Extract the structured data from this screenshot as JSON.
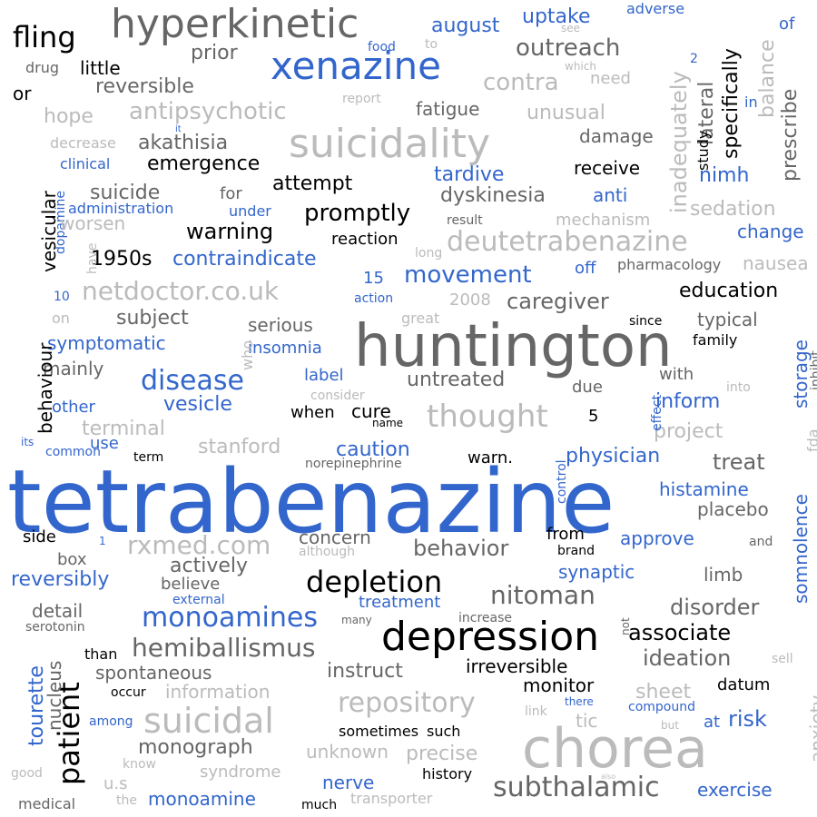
{
  "palette": {
    "black": "#000000",
    "dark_gray": "#666666",
    "light_gray": "#bbbbbb",
    "blue": "#3366cc",
    "mid_gray": "#999999"
  },
  "words": [
    "tetrabenazine",
    "huntington",
    "chorea",
    "xenazine",
    "suicidality",
    "depression",
    "hyperkinetic",
    "deutetrabenazine",
    "patient",
    "subthalamic",
    "repository",
    "suicidal",
    "hemiballismus",
    "monoamines",
    "depletion",
    "thought",
    "nitoman",
    "disease",
    "fling",
    "rxmed.com",
    "netdoctor.co.uk",
    "behavior",
    "associate",
    "ideation",
    "disorder",
    "antipsychotic",
    "akathisia",
    "emergence",
    "outreach",
    "contra",
    "uptake",
    "august",
    "promptly",
    "movement",
    "caregiver",
    "education",
    "tardive",
    "dyskinesia",
    "receive",
    "nimh",
    "anti",
    "sedation",
    "change",
    "nausea",
    "inadequately",
    "lateral",
    "specifically",
    "prescribe",
    "balance",
    "of",
    "adverse",
    "see",
    "to",
    "food",
    "need",
    "which",
    "2",
    "in",
    "study",
    "little",
    "prior",
    "drug",
    "reversible",
    "or",
    "report",
    "hope",
    "fatigue",
    "unusual",
    "damage",
    "decrease",
    "clinical",
    "it",
    "suicide",
    "for",
    "attempt",
    "administration",
    "under",
    "dopamine",
    "worsen",
    "warning",
    "reaction",
    "result",
    "mechanism",
    "1950s",
    "contraindicate",
    "long",
    "off",
    "pharmacology",
    "15",
    "have",
    "10",
    "action",
    "2008",
    "great",
    "on",
    "subject",
    "serious",
    "since",
    "typical",
    "family",
    "symptomatic",
    "insomnia",
    "who",
    "label",
    "consider",
    "untreated",
    "with",
    "into",
    "inhibit",
    "storage",
    "mainly",
    "other",
    "when",
    "cure",
    "due",
    "5",
    "inform",
    "project",
    "effect",
    "fda",
    "terminal",
    "name",
    "vesicle",
    "stanford",
    "use",
    "caution",
    "warn.",
    "physician",
    "common",
    "its",
    "term",
    "norepinephrine",
    "control",
    "treat",
    "histamine",
    "placebo",
    "somnolence",
    "side",
    "concern",
    "although",
    "from",
    "brand",
    "approve",
    "and",
    "box",
    "1",
    "actively",
    "limb",
    "reversibly",
    "believe",
    "synaptic",
    "treatment",
    "detail",
    "external",
    "serotonin",
    "many",
    "increase",
    "not",
    "tourette",
    "nucleus",
    "than",
    "spontaneous",
    "instruct",
    "irreversible",
    "monitor",
    "sheet",
    "datum",
    "sell",
    "information",
    "occur",
    "among",
    "link",
    "there",
    "compound",
    "but",
    "at",
    "risk",
    "anxiety",
    "monograph",
    "sometimes",
    "such",
    "unknown",
    "precise",
    "tic",
    "know",
    "good",
    "syndrome",
    "history",
    "also",
    "u.s",
    "nerve",
    "exercise",
    "medical",
    "the",
    "monoamine",
    "much",
    "transporter",
    "vesicular",
    "behaviour"
  ]
}
